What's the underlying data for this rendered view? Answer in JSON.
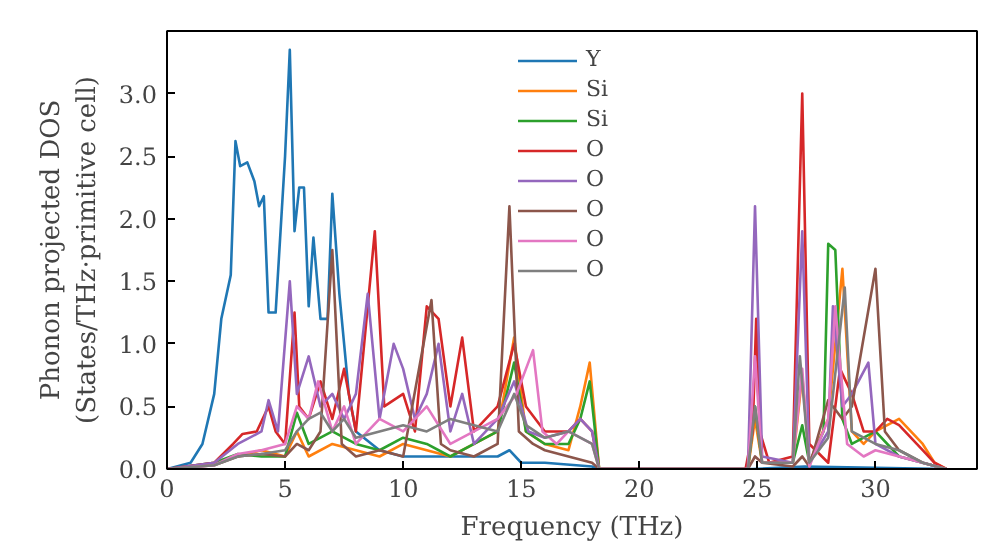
{
  "chart_data": {
    "type": "line",
    "xlabel": "Frequency (THz)",
    "ylabel": "Phonon projected DOS\n(States/THz·primitive cell)",
    "xlim": [
      0,
      34.3
    ],
    "ylim": [
      0,
      3.5
    ],
    "xticks": [
      0,
      5,
      10,
      15,
      20,
      25,
      30
    ],
    "yticks": [
      {
        "value": 0,
        "label": "0.0"
      },
      0.5,
      {
        "value": 1,
        "label": "1.0"
      },
      1.5,
      {
        "value": 2,
        "label": "2.0"
      },
      2.5,
      {
        "value": 3,
        "label": "3.0"
      }
    ],
    "grid": false,
    "legend": "top",
    "marker": "none",
    "line_style": "solid",
    "series": [
      {
        "name": "Y",
        "color": "#1f77b4",
        "x": [
          0,
          1,
          1.5,
          2,
          2.3,
          2.7,
          2.9,
          3.1,
          3.4,
          3.7,
          3.9,
          4.1,
          4.3,
          4.6,
          5.0,
          5.2,
          5.4,
          5.6,
          5.8,
          6.0,
          6.2,
          6.5,
          6.8,
          7.0,
          7.3,
          7.7,
          8,
          9,
          10,
          12,
          14,
          14.5,
          15,
          16,
          18,
          18.3,
          24.8,
          27,
          33
        ],
        "values": [
          0,
          0.05,
          0.2,
          0.6,
          1.2,
          1.55,
          2.62,
          2.42,
          2.45,
          2.3,
          2.1,
          2.18,
          1.25,
          1.25,
          2.5,
          3.35,
          1.9,
          2.25,
          2.25,
          1.3,
          1.85,
          1.2,
          1.2,
          2.2,
          1.4,
          0.6,
          0.3,
          0.15,
          0.1,
          0.1,
          0.1,
          0.15,
          0.05,
          0.05,
          0.02,
          0,
          0,
          0.02,
          0
        ]
      },
      {
        "name": "Si",
        "color": "#ff7f0e",
        "x": [
          3,
          4,
          5,
          5.5,
          6,
          7,
          8,
          9,
          10,
          11,
          12,
          13,
          14,
          14.7,
          15.2,
          16,
          17,
          17.5,
          17.9,
          18.3,
          24.6,
          24.9,
          25.2,
          26.5,
          26.9,
          27.2,
          28,
          28.6,
          29,
          29.5,
          30,
          31,
          32,
          32.5,
          33
        ],
        "values": [
          0.1,
          0.15,
          0.1,
          0.3,
          0.1,
          0.2,
          0.15,
          0.1,
          0.2,
          0.15,
          0.1,
          0.2,
          0.3,
          1.05,
          0.3,
          0.2,
          0.15,
          0.5,
          0.85,
          0,
          0,
          0.4,
          0.05,
          0.05,
          0.75,
          0.05,
          0.4,
          1.6,
          0.3,
          0.2,
          0.3,
          0.4,
          0.2,
          0.05,
          0
        ]
      },
      {
        "name": "Si",
        "color": "#2ca02c",
        "x": [
          0,
          2,
          3,
          4,
          5,
          5.5,
          6,
          7,
          8,
          9,
          10,
          11,
          12,
          13,
          14,
          14.7,
          15.2,
          16,
          17,
          17.5,
          17.9,
          18.3,
          24.6,
          24.9,
          25.2,
          26.5,
          26.9,
          27.2,
          27.8,
          28.0,
          28.3,
          28.6,
          29,
          30,
          31,
          32,
          33
        ],
        "values": [
          0,
          0.05,
          0.12,
          0.1,
          0.1,
          0.45,
          0.2,
          0.3,
          0.2,
          0.15,
          0.25,
          0.2,
          0.1,
          0.2,
          0.3,
          0.85,
          0.3,
          0.2,
          0.2,
          0.4,
          0.7,
          0,
          0,
          0.5,
          0.05,
          0.05,
          0.35,
          0.05,
          0.3,
          1.8,
          1.75,
          0.4,
          0.2,
          0.3,
          0.1,
          0.05,
          0
        ]
      },
      {
        "name": "O",
        "color": "#d62728",
        "x": [
          0,
          2,
          2.8,
          3.2,
          3.8,
          4.3,
          4.6,
          5,
          5.4,
          5.6,
          6,
          6.5,
          7,
          7.5,
          8,
          8.8,
          9.2,
          10,
          10.5,
          11,
          11.5,
          12,
          12.5,
          13,
          14,
          14.7,
          15.2,
          16,
          17,
          17.5,
          18,
          18.3,
          24.5,
          24.8,
          24.95,
          25.1,
          25.5,
          26.5,
          26.9,
          27.2,
          28,
          28.5,
          29,
          29.5,
          30,
          30.5,
          31,
          32,
          32.5,
          33
        ],
        "values": [
          0,
          0.05,
          0.2,
          0.28,
          0.3,
          0.5,
          0.3,
          0.2,
          1.25,
          0.5,
          0.4,
          0.7,
          0.4,
          0.8,
          0.3,
          1.9,
          0.5,
          0.6,
          0.3,
          1.3,
          1.2,
          0.5,
          1.05,
          0.3,
          0.5,
          1.0,
          0.5,
          0.3,
          0.3,
          0.4,
          0.3,
          0,
          0,
          0.3,
          1.2,
          0.3,
          0.05,
          0.1,
          3.0,
          0.2,
          0.05,
          0.8,
          0.6,
          0.3,
          0.3,
          0.4,
          0.35,
          0.15,
          0.05,
          0
        ]
      },
      {
        "name": "O",
        "color": "#9467bd",
        "x": [
          0,
          2,
          3,
          4,
          4.3,
          4.7,
          5.2,
          5.5,
          6,
          6.5,
          7,
          7.5,
          8,
          8.5,
          9,
          9.6,
          10,
          10.5,
          11,
          11.5,
          12,
          12.5,
          13,
          14,
          14.7,
          15.3,
          16,
          17,
          17.5,
          18,
          18.3,
          24.6,
          24.9,
          25.2,
          26.5,
          26.9,
          27.2,
          28,
          28.2,
          28.6,
          29,
          29.7,
          30,
          31,
          32,
          33
        ],
        "values": [
          0,
          0.05,
          0.2,
          0.3,
          0.55,
          0.3,
          1.5,
          0.6,
          0.9,
          0.5,
          0.6,
          0.4,
          0.6,
          1.4,
          0.4,
          1.0,
          0.8,
          0.4,
          0.6,
          1.0,
          0.3,
          0.6,
          0.2,
          0.4,
          0.7,
          0.3,
          0.25,
          0.3,
          0.4,
          0.3,
          0,
          0,
          2.1,
          0.1,
          0.05,
          1.9,
          0.05,
          0.3,
          1.3,
          0.5,
          0.6,
          0.85,
          0.2,
          0.1,
          0.05,
          0
        ]
      },
      {
        "name": "O",
        "color": "#8c564b",
        "x": [
          0,
          2,
          3,
          4,
          5,
          5.5,
          6,
          6.5,
          7.0,
          7.4,
          8,
          9,
          10,
          11.2,
          11.6,
          12,
          13,
          14,
          14.5,
          14.9,
          15.5,
          16,
          17,
          18,
          18.3,
          24.6,
          24.9,
          25.2,
          26.5,
          26.9,
          27.2,
          28,
          28.6,
          29,
          30,
          30.4,
          31,
          32,
          33
        ],
        "values": [
          0,
          0.03,
          0.1,
          0.12,
          0.1,
          0.2,
          0.15,
          0.3,
          1.75,
          0.2,
          0.1,
          0.15,
          0.1,
          1.35,
          0.2,
          0.15,
          0.1,
          0.2,
          2.1,
          0.3,
          0.2,
          0.15,
          0.1,
          0.05,
          0,
          0,
          0.1,
          0.05,
          0.02,
          0.1,
          0.02,
          0.55,
          0.4,
          0.5,
          1.6,
          0.3,
          0.15,
          0.05,
          0
        ]
      },
      {
        "name": "O",
        "color": "#e377c2",
        "x": [
          0,
          2,
          3,
          4,
          5,
          5.5,
          6,
          6.4,
          7,
          7.5,
          8,
          9,
          10,
          11,
          12,
          13,
          14,
          14.8,
          15.5,
          15.9,
          16.5,
          17,
          18,
          18.3,
          24.6,
          24.9,
          25.2,
          26.5,
          26.9,
          27.2,
          28,
          28.3,
          28.8,
          29.5,
          30,
          31,
          32,
          33
        ],
        "values": [
          0,
          0.03,
          0.12,
          0.15,
          0.2,
          0.5,
          0.4,
          0.7,
          0.3,
          0.5,
          0.2,
          0.4,
          0.3,
          0.5,
          0.2,
          0.3,
          0.4,
          0.6,
          0.95,
          0.3,
          0.2,
          0.3,
          0.2,
          0,
          0,
          0.9,
          0.05,
          0.05,
          0.8,
          0.02,
          0.4,
          1.3,
          0.2,
          0.1,
          0.15,
          0.1,
          0.05,
          0
        ]
      },
      {
        "name": "O",
        "color": "#7f7f7f",
        "x": [
          0,
          2,
          3,
          4,
          5,
          5.5,
          6,
          6.5,
          7,
          7.5,
          8,
          9,
          10,
          11,
          12,
          13,
          14,
          14.7,
          15.2,
          16,
          17,
          18,
          18.3,
          24.6,
          24.9,
          25.2,
          26.5,
          26.8,
          27.2,
          28,
          28.7,
          29,
          30,
          31,
          32,
          33
        ],
        "values": [
          0,
          0.03,
          0.1,
          0.12,
          0.15,
          0.3,
          0.4,
          0.45,
          0.3,
          0.4,
          0.25,
          0.3,
          0.35,
          0.3,
          0.4,
          0.35,
          0.3,
          0.6,
          0.35,
          0.25,
          0.3,
          0.2,
          0,
          0,
          0.5,
          0.05,
          0.05,
          0.9,
          0.05,
          0.25,
          1.45,
          0.3,
          0.2,
          0.15,
          0.05,
          0
        ]
      }
    ]
  }
}
